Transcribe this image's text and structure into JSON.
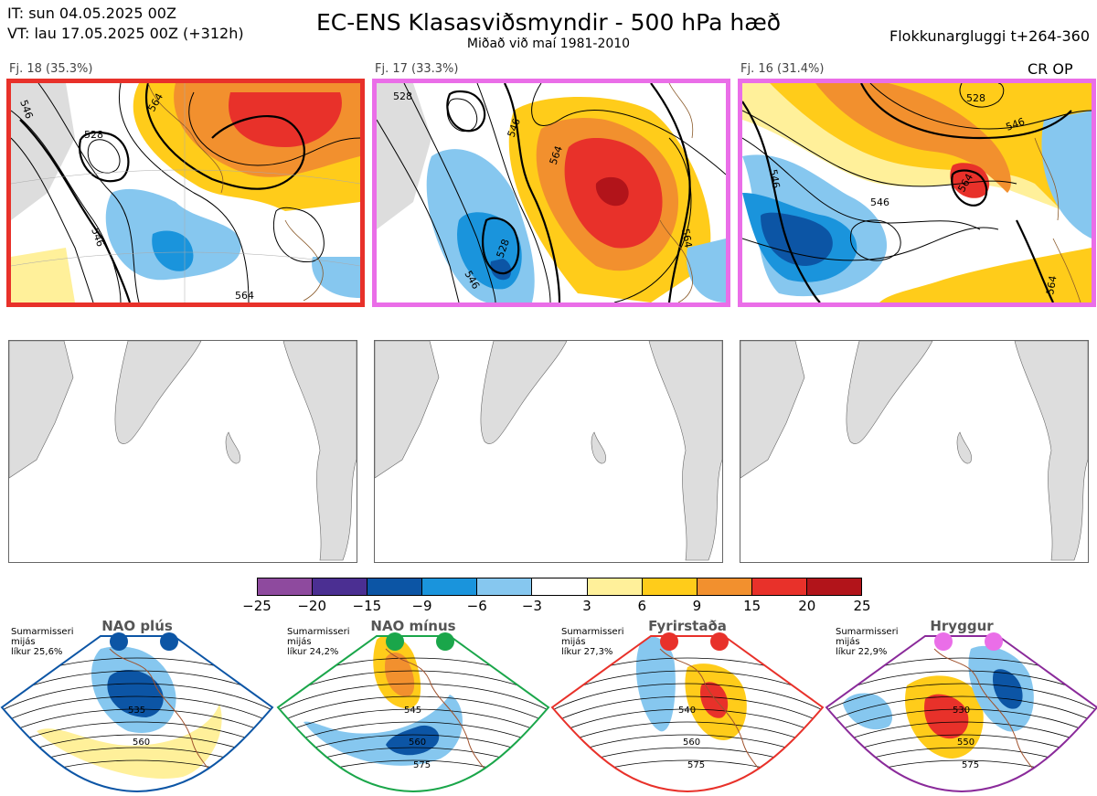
{
  "header": {
    "it_line": "IT: sun 04.05.2025 00Z",
    "vt_line": "VT: lau 17.05.2025 00Z  (+312h)",
    "title": "EC-ENS Klasasviðsmyndir - 500 hPa hæð",
    "subtitle": "Miðað við maí 1981-2010",
    "window": "Flokkunargluggi t+264-360",
    "crop": "CR OP"
  },
  "clusters": [
    {
      "label": "Fj. 18 (35.3%)",
      "border_color": "#e8312a",
      "contours": [
        "546",
        "546",
        "528",
        "564",
        "564"
      ]
    },
    {
      "label": "Fj. 17 (33.3%)",
      "border_color": "#ea6ee8",
      "contours": [
        "546",
        "564",
        "528",
        "564",
        "546",
        "528"
      ]
    },
    {
      "label": "Fj. 16 (31.4%)",
      "border_color": "#ea6ee8",
      "contours": [
        "546",
        "528",
        "564",
        "546",
        "564",
        "546"
      ]
    }
  ],
  "colorbar": {
    "colors": [
      "#8e4a9e",
      "#4b2f92",
      "#0c55a5",
      "#1a94dc",
      "#86c7ef",
      "#ffffff",
      "#fff09a",
      "#ffcc1a",
      "#f2902e",
      "#e8312a",
      "#b2141a"
    ],
    "ticks": [
      "−25",
      "−20",
      "−15",
      "−9",
      "−6",
      "−3",
      "3",
      "6",
      "9",
      "15",
      "20",
      "25"
    ]
  },
  "regimes": [
    {
      "name": "NAO plús",
      "season": "Sumarmisseri",
      "freq_label": "mijás",
      "prob": "líkur 25,6%",
      "dot_color": "#0c55a5",
      "border_color": "#0c55a5",
      "contours": [
        "535",
        "560"
      ]
    },
    {
      "name": "NAO mínus",
      "season": "Sumarmisseri",
      "freq_label": "mijás",
      "prob": "líkur 24,2%",
      "dot_color": "#1aa64a",
      "border_color": "#1aa64a",
      "contours": [
        "545",
        "560",
        "575"
      ]
    },
    {
      "name": "Fyrirstaða",
      "season": "Sumarmisseri",
      "freq_label": "mijás",
      "prob": "líkur 27,3%",
      "dot_color": "#e8312a",
      "border_color": "#e8312a",
      "contours": [
        "540",
        "560",
        "575"
      ]
    },
    {
      "name": "Hryggur",
      "season": "Sumarmisseri",
      "freq_label": "mijás",
      "prob": "líkur 22,9%",
      "dot_color": "#ea6ee8",
      "border_color": "#8a2a9a",
      "contours": [
        "530",
        "550",
        "575"
      ]
    }
  ]
}
